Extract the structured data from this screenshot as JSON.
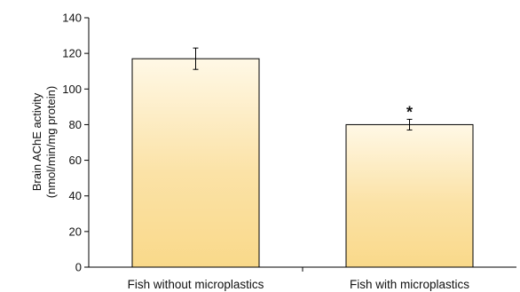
{
  "chart_data": {
    "type": "bar",
    "categories": [
      "Fish without microplastics",
      "Fish with microplastics"
    ],
    "values": [
      117,
      80
    ],
    "error": [
      6,
      3
    ],
    "annotations": [
      "",
      "*"
    ],
    "ylabel": [
      "Brain AChE activity",
      "(nmol/min/mg protein)"
    ],
    "ylim": [
      0,
      140
    ],
    "yticks": [
      0,
      20,
      40,
      60,
      80,
      100,
      120,
      140
    ],
    "grid": false,
    "legend": "none",
    "bar_gradient": [
      "#f9d98a",
      "#fff8e6"
    ],
    "bar_edge": "#000000"
  }
}
